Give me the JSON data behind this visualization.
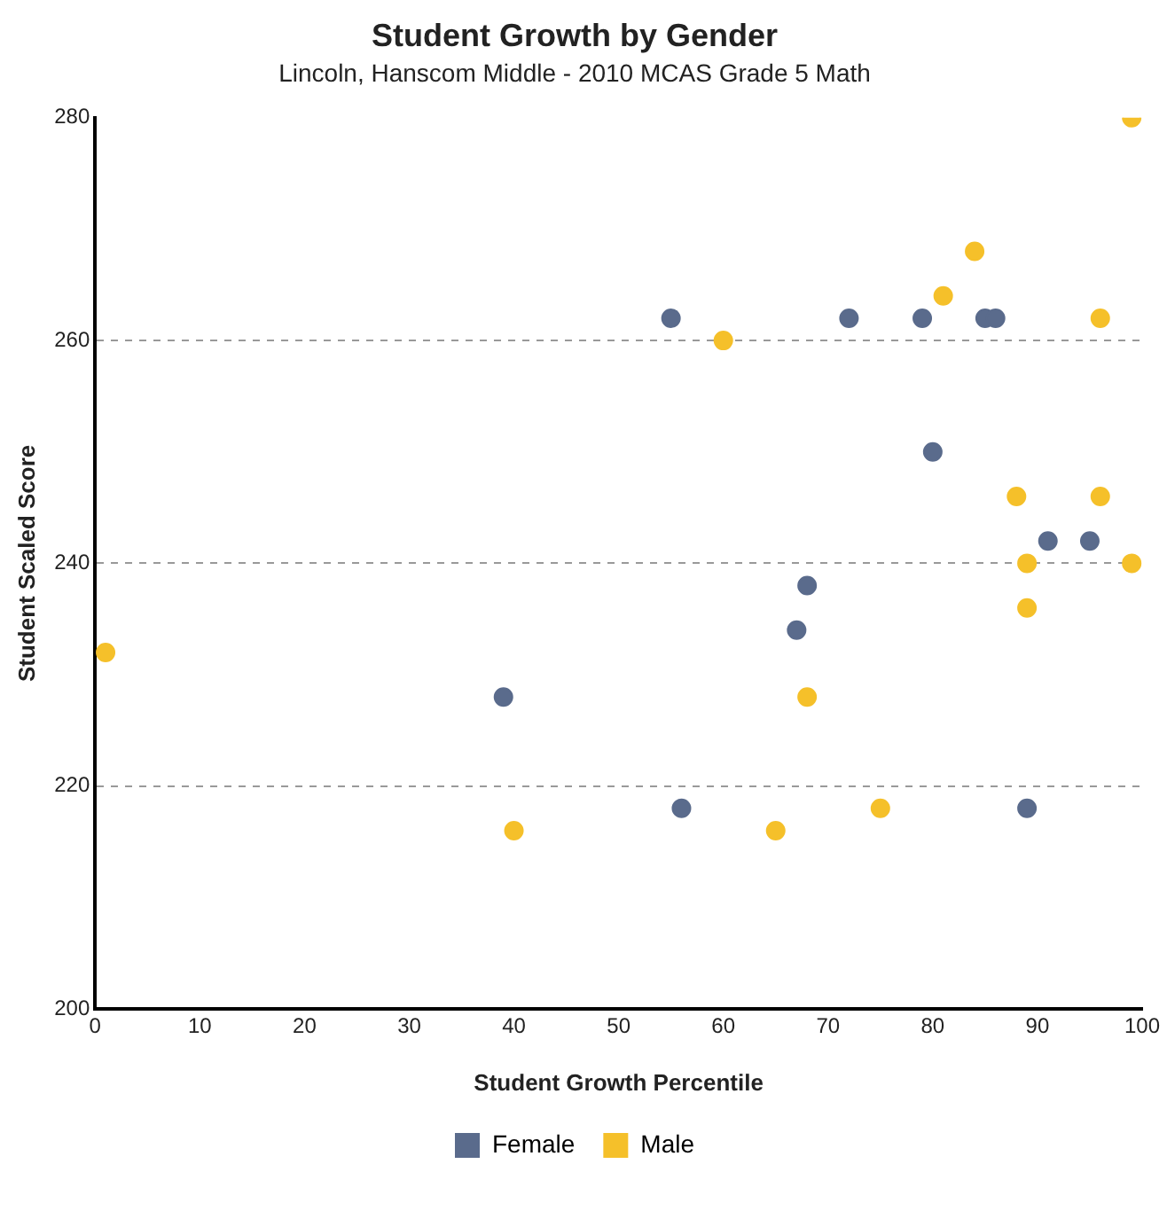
{
  "chart_data": {
    "type": "scatter",
    "title": "Student Growth by Gender",
    "subtitle": "Lincoln, Hanscom Middle - 2010 MCAS Grade 5 Math",
    "xlabel": "Student Growth Percentile",
    "ylabel": "Student Scaled Score",
    "xlim": [
      0,
      100
    ],
    "xticks": [
      0,
      10,
      20,
      30,
      40,
      50,
      60,
      70,
      80,
      90,
      100
    ],
    "ylim": [
      200,
      280
    ],
    "yticks": [
      200,
      220,
      240,
      260,
      280
    ],
    "grid": "y",
    "line_style": "dashed",
    "legend": "bottom",
    "marker": "circle",
    "series": [
      {
        "name": "Female",
        "color": "#5a6b8c",
        "x": [
          39,
          55,
          56,
          67,
          68,
          72,
          79,
          80,
          85,
          86,
          89,
          91,
          95
        ],
        "values": [
          228,
          262,
          218,
          234,
          238,
          262,
          262,
          250,
          262,
          262,
          218,
          242,
          242
        ]
      },
      {
        "name": "Male",
        "color": "#f5c02a",
        "x": [
          1,
          40,
          60,
          65,
          68,
          75,
          81,
          84,
          88,
          89,
          89,
          96,
          96,
          99,
          99
        ],
        "values": [
          232,
          216,
          260,
          216,
          228,
          218,
          264,
          268,
          246,
          240,
          236,
          262,
          246,
          280,
          240
        ]
      }
    ]
  }
}
